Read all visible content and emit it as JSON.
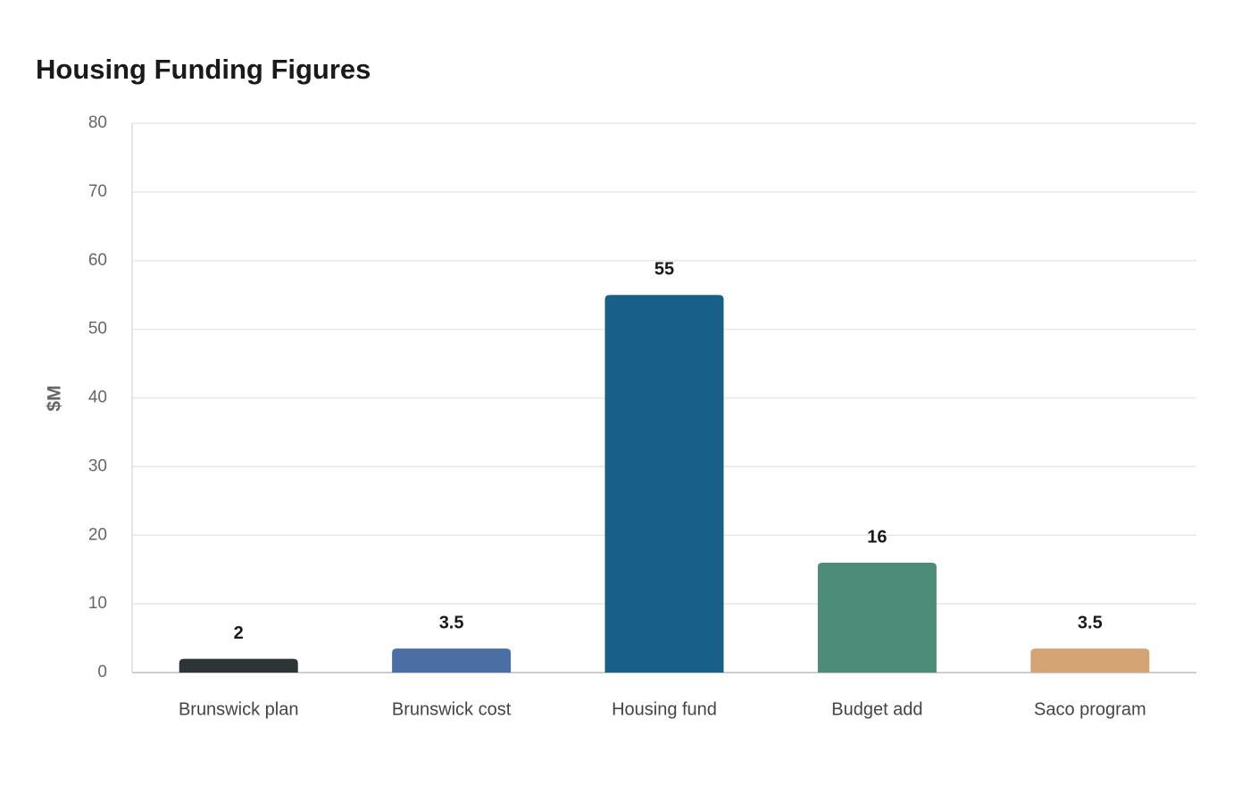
{
  "chart_data": {
    "type": "bar",
    "title": "Housing Funding Figures",
    "y_label": "$M",
    "categories": [
      "Brunswick plan",
      "Brunswick cost",
      "Housing fund",
      "Budget add",
      "Saco program"
    ],
    "values": [
      2,
      3.5,
      55,
      16,
      3.5
    ],
    "colors": [
      "#2d3436",
      "#4a6fa5",
      "#186088",
      "#4e8c7a",
      "#d4a574"
    ],
    "ylim": [
      0,
      80
    ],
    "yticks": [
      0,
      10,
      20,
      30,
      40,
      50,
      60,
      70,
      80
    ],
    "grid": true
  }
}
